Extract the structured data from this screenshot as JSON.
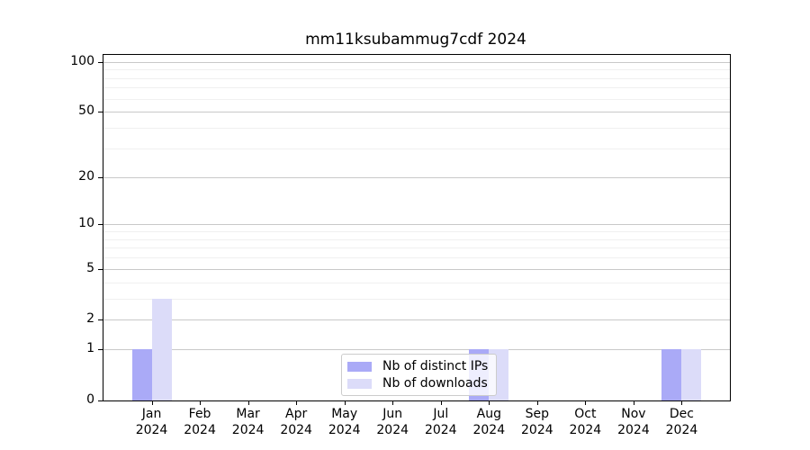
{
  "chart_data": {
    "type": "bar",
    "title": "mm11ksubammug7cdf 2024",
    "categories": [
      {
        "month": "Jan",
        "year": "2024"
      },
      {
        "month": "Feb",
        "year": "2024"
      },
      {
        "month": "Mar",
        "year": "2024"
      },
      {
        "month": "Apr",
        "year": "2024"
      },
      {
        "month": "May",
        "year": "2024"
      },
      {
        "month": "Jun",
        "year": "2024"
      },
      {
        "month": "Jul",
        "year": "2024"
      },
      {
        "month": "Aug",
        "year": "2024"
      },
      {
        "month": "Sep",
        "year": "2024"
      },
      {
        "month": "Oct",
        "year": "2024"
      },
      {
        "month": "Nov",
        "year": "2024"
      },
      {
        "month": "Dec",
        "year": "2024"
      }
    ],
    "series": [
      {
        "name": "Nb of distinct IPs",
        "color": "#aaaaf7",
        "values": [
          1,
          0,
          0,
          0,
          0,
          0,
          0,
          1,
          0,
          0,
          0,
          1
        ]
      },
      {
        "name": "Nb of downloads",
        "color": "#dcdcf9",
        "values": [
          3,
          0,
          0,
          0,
          0,
          0,
          0,
          1,
          0,
          0,
          0,
          1
        ]
      }
    ],
    "yticks": [
      0,
      1,
      2,
      5,
      10,
      20,
      50,
      100
    ],
    "minor_yticks": [
      3,
      4,
      6,
      7,
      8,
      9,
      30,
      40,
      60,
      70,
      80,
      90
    ],
    "ylim": [
      0,
      110
    ],
    "scale": "log1p",
    "grid": "both",
    "legend_position": "lower center",
    "colors": {
      "major_grid": "#c9c9c9",
      "minor_grid": "#f0f0f0",
      "spine": "#000000",
      "legend_border": "#cccccc"
    }
  }
}
